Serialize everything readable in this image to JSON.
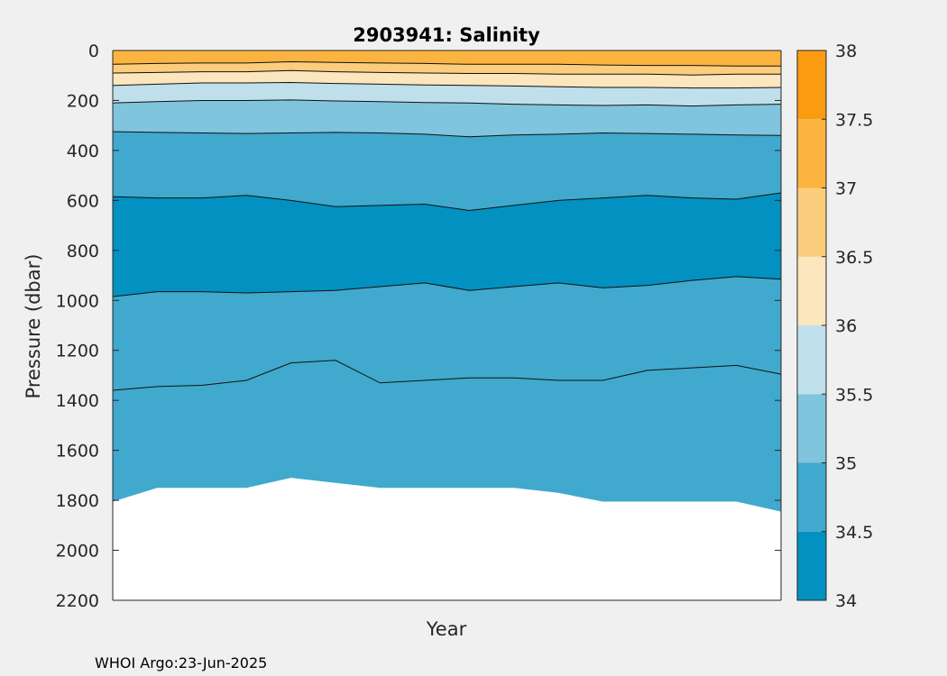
{
  "chart_data": {
    "type": "contour",
    "title": "2903941:  Salinity",
    "xlabel": "Year",
    "ylabel": "Pressure (dbar)",
    "ylim": [
      0,
      2200
    ],
    "y_reversed": true,
    "yticks": [
      "0",
      "200",
      "400",
      "600",
      "800",
      "1000",
      "1200",
      "1400",
      "1600",
      "1800",
      "2000",
      "2200"
    ],
    "xticks": [],
    "grid": false,
    "colorbar": {
      "location": "right",
      "ticks": [
        "34",
        "34.5",
        "35",
        "35.5",
        "36",
        "36.5",
        "37",
        "37.5",
        "38"
      ],
      "range": [
        34,
        38
      ],
      "levels": [
        {
          "from": 34.0,
          "to": 34.5,
          "color": "#0291c0"
        },
        {
          "from": 34.5,
          "to": 35.0,
          "color": "#40a9cd"
        },
        {
          "from": 35.0,
          "to": 35.5,
          "color": "#80c4dd"
        },
        {
          "from": 35.5,
          "to": 36.0,
          "color": "#bfe0eb"
        },
        {
          "from": 36.0,
          "to": 36.5,
          "color": "#fbe6bd"
        },
        {
          "from": 36.5,
          "to": 37.0,
          "color": "#fbcd7c"
        },
        {
          "from": 37.0,
          "to": 37.5,
          "color": "#fbb43f"
        },
        {
          "from": 37.5,
          "to": 38.0,
          "color": "#fb9b12"
        }
      ]
    },
    "profiles": 16,
    "contours": [
      {
        "level": 37.0,
        "depth": [
          55,
          52,
          50,
          50,
          45,
          48,
          50,
          52,
          55,
          55,
          55,
          58,
          60,
          60,
          62,
          62
        ]
      },
      {
        "level": 36.5,
        "depth": [
          90,
          88,
          85,
          85,
          80,
          85,
          88,
          90,
          92,
          92,
          95,
          95,
          95,
          98,
          95,
          95
        ]
      },
      {
        "level": 36.0,
        "depth": [
          140,
          135,
          130,
          130,
          128,
          132,
          135,
          138,
          140,
          142,
          145,
          148,
          148,
          150,
          150,
          148
        ]
      },
      {
        "level": 35.5,
        "depth": [
          210,
          205,
          200,
          200,
          198,
          202,
          205,
          208,
          210,
          215,
          218,
          220,
          218,
          222,
          218,
          215
        ]
      },
      {
        "level": 35.0,
        "depth": [
          325,
          328,
          330,
          332,
          330,
          328,
          330,
          335,
          345,
          338,
          335,
          330,
          332,
          335,
          338,
          340
        ]
      },
      {
        "level": 34.5,
        "depth": [
          585,
          590,
          590,
          580,
          600,
          625,
          620,
          615,
          640,
          620,
          600,
          590,
          580,
          590,
          595,
          570
        ]
      },
      {
        "level": 34.5,
        "depth": [
          985,
          965,
          965,
          970,
          965,
          960,
          945,
          930,
          960,
          945,
          930,
          950,
          940,
          920,
          905,
          915
        ]
      }
    ],
    "deep_contour": {
      "level": 34.8,
      "depth": [
        1360,
        1345,
        1340,
        1320,
        1250,
        1240,
        1330,
        1320,
        1310,
        1310,
        1320,
        1320,
        1280,
        1270,
        1260,
        1295
      ]
    },
    "max_depth": [
      1805,
      1750,
      1750,
      1750,
      1710,
      1730,
      1750,
      1750,
      1750,
      1750,
      1770,
      1805,
      1805,
      1805,
      1805,
      1845
    ]
  },
  "footer": "WHOI Argo:23-Jun-2025"
}
